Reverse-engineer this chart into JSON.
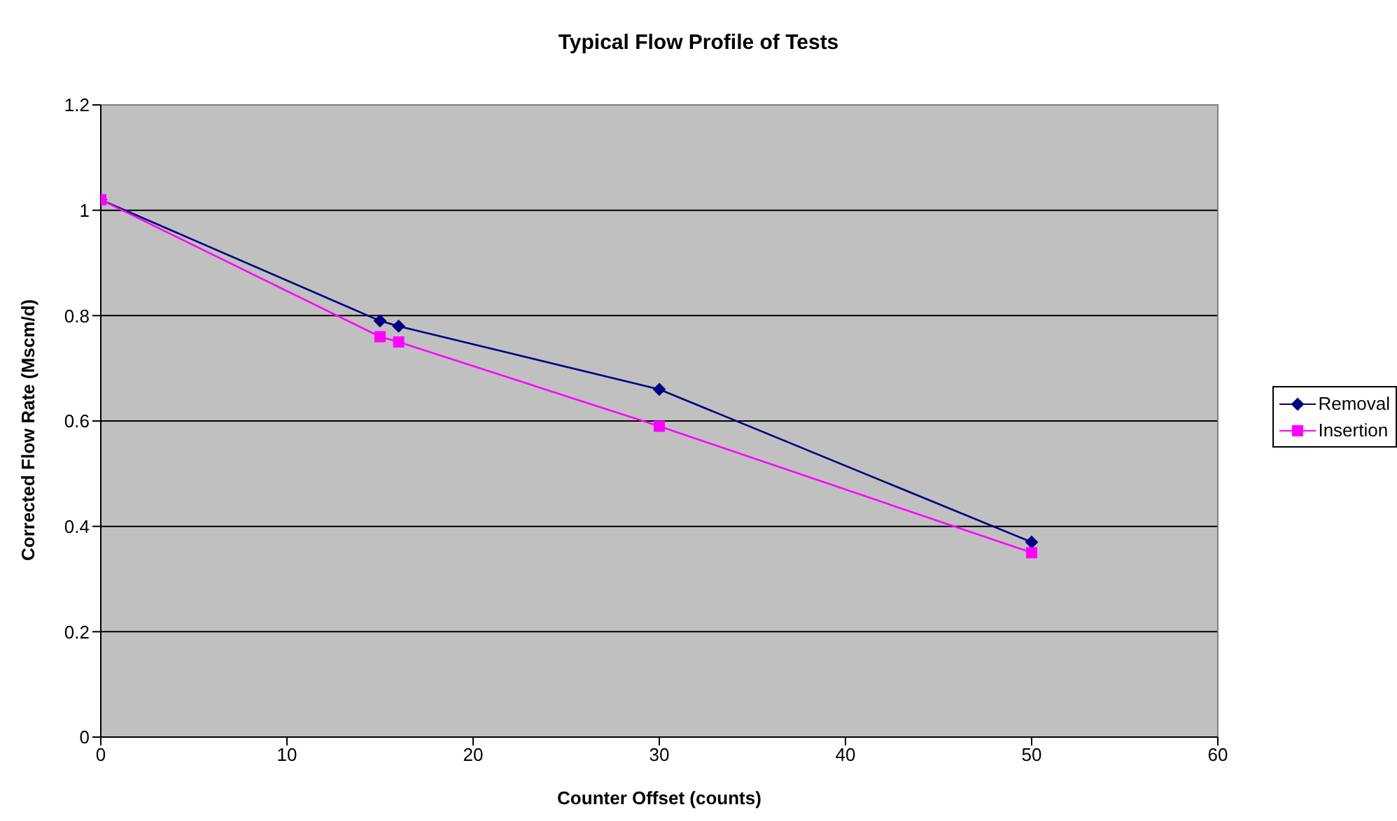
{
  "chart_data": {
    "type": "line",
    "title": "Typical Flow Profile of Tests",
    "xlabel": "Counter Offset (counts)",
    "ylabel": "Corrected Flow Rate (Mscm/d)",
    "x": [
      0,
      15,
      16,
      30,
      50
    ],
    "series": [
      {
        "name": "Removal",
        "color": "#000080",
        "marker": "diamond",
        "values": [
          1.02,
          0.79,
          0.78,
          0.66,
          0.37
        ]
      },
      {
        "name": "Insertion",
        "color": "#ff00ff",
        "marker": "square",
        "values": [
          1.02,
          0.76,
          0.75,
          0.59,
          0.35
        ]
      }
    ],
    "xlim": [
      0,
      60
    ],
    "xticks": [
      0,
      10,
      20,
      30,
      40,
      50,
      60
    ],
    "ylim": [
      0,
      1.2
    ],
    "yticks": [
      0,
      0.2,
      0.4,
      0.6,
      0.8,
      1,
      1.2
    ],
    "grid": "y",
    "legend": "right"
  }
}
